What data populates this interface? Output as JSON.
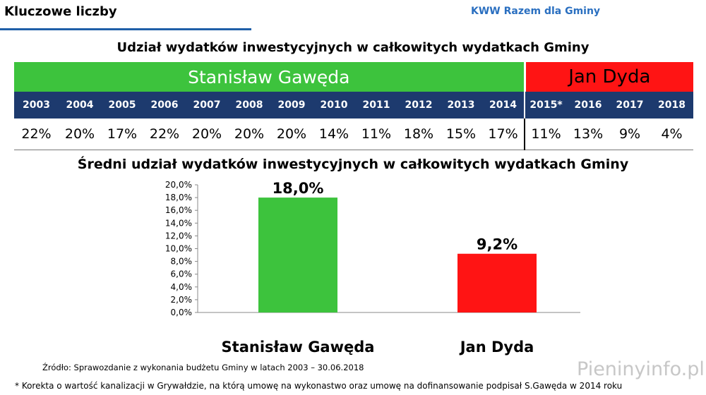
{
  "header": {
    "title": "Kluczowe liczby",
    "brand": "KWW Razem dla Gminy"
  },
  "table_title": "Udział wydatków inwestycyjnych w całkowitych wydatkach Gminy",
  "candidates": [
    {
      "name": "Stanisław Gawęda",
      "color": "#3dc33d"
    },
    {
      "name": "Jan Dyda",
      "color": "#ff1414"
    }
  ],
  "years": [
    "2003",
    "2004",
    "2005",
    "2006",
    "2007",
    "2008",
    "2009",
    "2010",
    "2011",
    "2012",
    "2013",
    "2014",
    "2015*",
    "2016",
    "2017",
    "2018"
  ],
  "values": [
    "22%",
    "20%",
    "17%",
    "22%",
    "20%",
    "20%",
    "20%",
    "14%",
    "11%",
    "18%",
    "15%",
    "17%",
    "11%",
    "13%",
    "9%",
    "4%"
  ],
  "chart_data": {
    "type": "bar",
    "title": "Średni udział wydatków inwestycyjnych w całkowitych wydatkach Gminy",
    "categories": [
      "Stanisław Gawęda",
      "Jan Dyda"
    ],
    "values": [
      18.0,
      9.2
    ],
    "data_labels": [
      "18,0%",
      "9,2%"
    ],
    "colors": [
      "#3dc33d",
      "#ff1414"
    ],
    "ylim": [
      0,
      20
    ],
    "yticks": [
      "0,0%",
      "2,0%",
      "4,0%",
      "6,0%",
      "8,0%",
      "10,0%",
      "12,0%",
      "14,0%",
      "16,0%",
      "18,0%",
      "20,0%"
    ],
    "ylabel": "",
    "xlabel": "",
    "grid": false
  },
  "source": "Źródło: Sprawozdanie z wykonania budżetu Gminy w latach 2003 – 30.06.2018",
  "footnote": "* Korekta o wartość kanalizacji w Grywałdzie, na którą umowę na wykonastwo oraz umowę na dofinansowanie podpisał S.Gawęda w 2014 roku",
  "watermark": "Pieninyinfo.pl"
}
